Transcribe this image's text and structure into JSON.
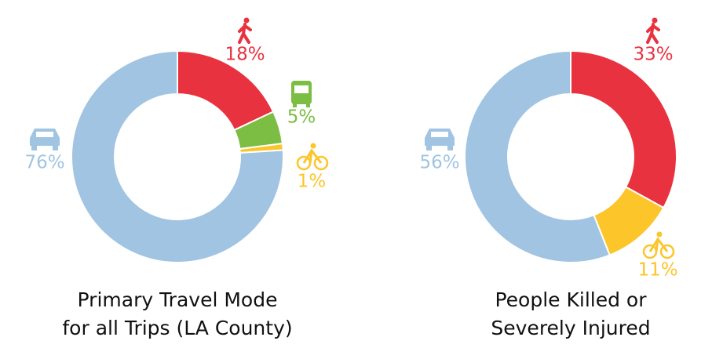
{
  "chart_data": [
    {
      "type": "donut",
      "title": [
        "Primary Travel Mode",
        "for all Trips (LA County)"
      ],
      "values": [
        18,
        5,
        1,
        76
      ],
      "value_labels": [
        "18%",
        "5%",
        "1%",
        "76%"
      ],
      "colors": [
        "#e8323f",
        "#7cbd43",
        "#fcc52a",
        "#a0c4e1"
      ]
    },
    {
      "type": "donut",
      "title": [
        "People Killed or",
        "Severely Injured"
      ],
      "values": [
        33,
        11,
        56
      ],
      "value_labels": [
        "33%",
        "11%",
        "56%"
      ],
      "colors": [
        "#e8323f",
        "#fcc52a",
        "#a0c4e1"
      ]
    }
  ]
}
